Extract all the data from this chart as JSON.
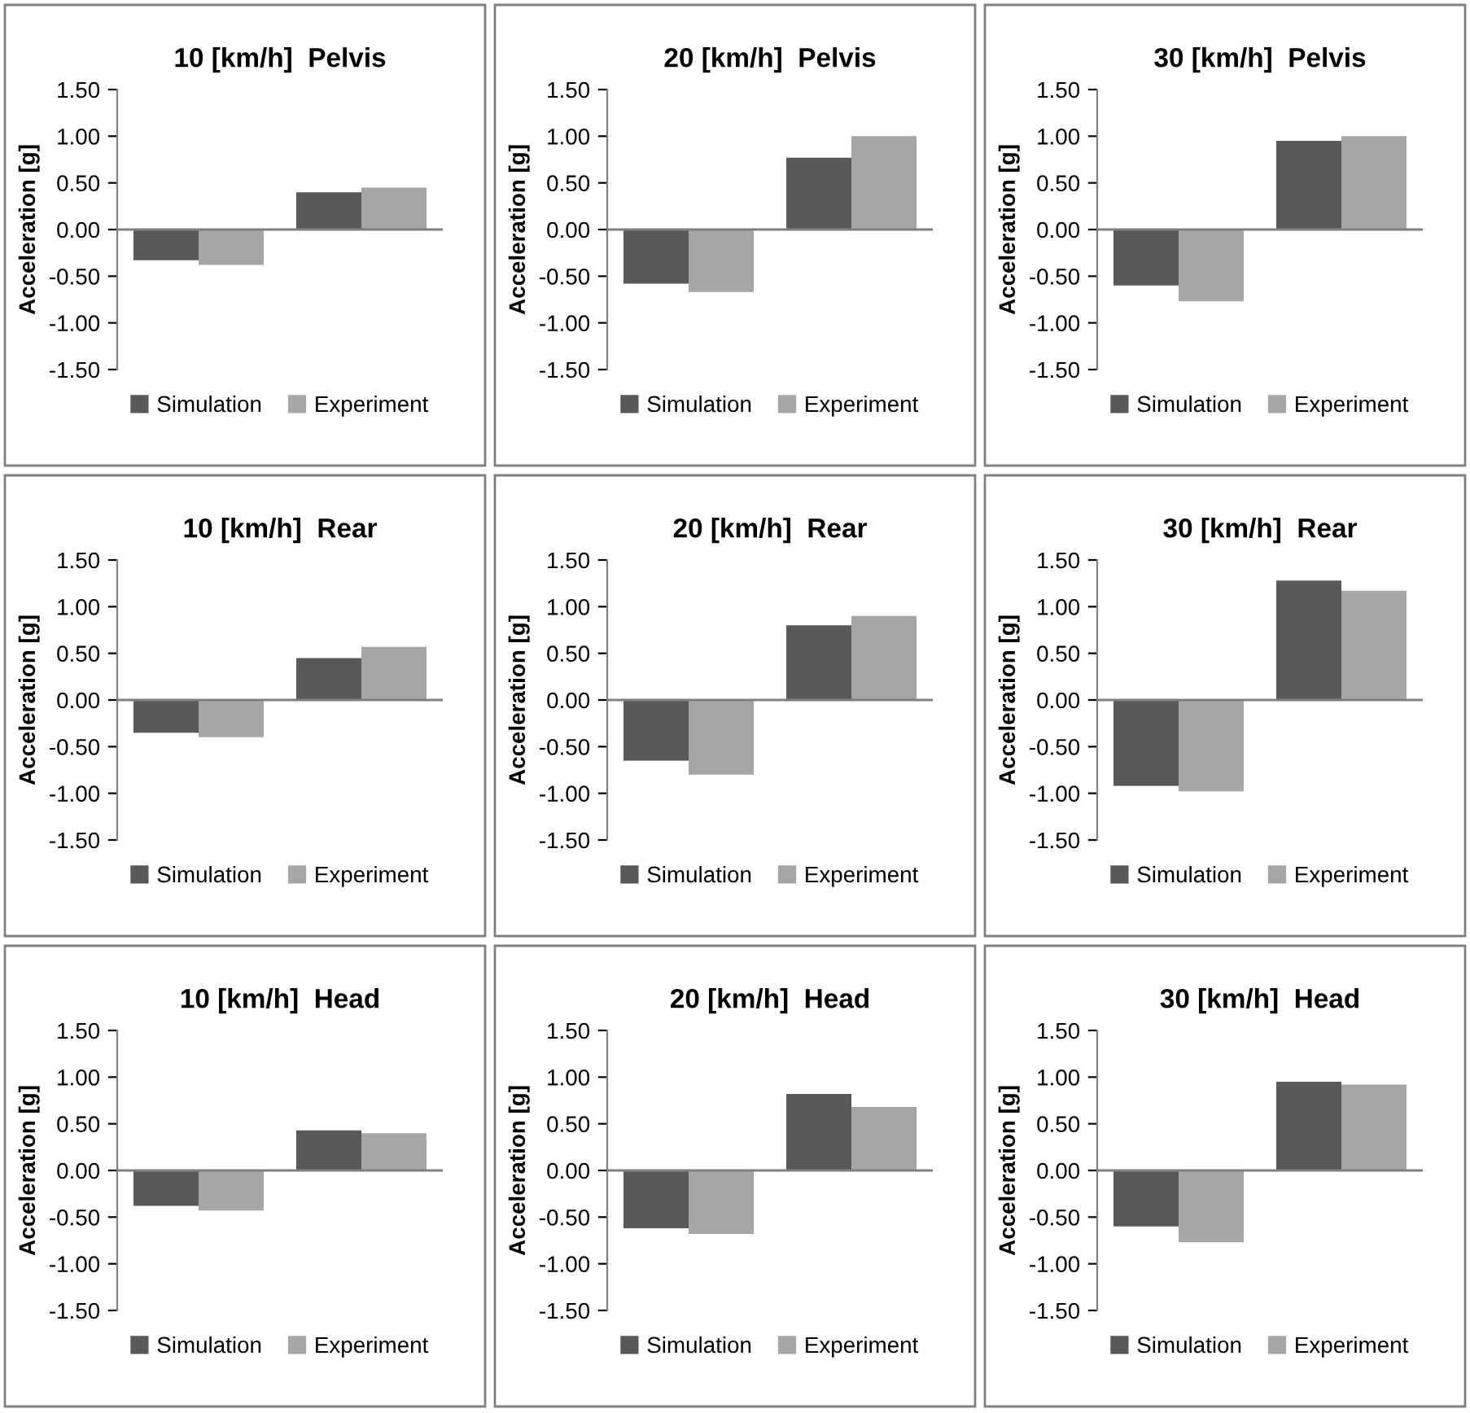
{
  "chart_data": [
    {
      "type": "bar",
      "title": "10 [km/h]  Pelvis",
      "ylabel": "Acceleration [g]",
      "categories": [
        null,
        null
      ],
      "series": [
        {
          "name": "Simulation",
          "color": "#595959",
          "values": [
            -0.33,
            0.4
          ]
        },
        {
          "name": "Experiment",
          "color": "#a6a6a6",
          "values": [
            -0.38,
            0.45
          ]
        }
      ],
      "ylim": [
        -1.5,
        1.5
      ],
      "yticks": [
        {
          "value": -1.5,
          "label": "-1.50"
        },
        {
          "value": -1.0,
          "label": "-1.00"
        },
        {
          "value": -0.5,
          "label": "-0.50"
        },
        {
          "value": 0,
          "label": "0.00"
        },
        {
          "value": 0.5,
          "label": "0.50"
        },
        {
          "value": 1.0,
          "label": "1.00"
        },
        {
          "value": 1.5,
          "label": "1.50"
        }
      ],
      "legend": "bottom",
      "tick_labels": "y"
    },
    {
      "type": "bar",
      "title": "20 [km/h]  Pelvis",
      "ylabel": "Acceleration [g]",
      "categories": [
        null,
        null
      ],
      "series": [
        {
          "name": "Simulation",
          "color": "#595959",
          "values": [
            -0.58,
            0.77
          ]
        },
        {
          "name": "Experiment",
          "color": "#a6a6a6",
          "values": [
            -0.67,
            1.0
          ]
        }
      ],
      "ylim": [
        -1.5,
        1.5
      ],
      "yticks": [
        {
          "value": -1.5,
          "label": "-1.50"
        },
        {
          "value": -1.0,
          "label": "-1.00"
        },
        {
          "value": -0.5,
          "label": "-0.50"
        },
        {
          "value": 0,
          "label": "0.00"
        },
        {
          "value": 0.5,
          "label": "0.50"
        },
        {
          "value": 1.0,
          "label": "1.00"
        },
        {
          "value": 1.5,
          "label": "1.50"
        }
      ],
      "legend": "bottom",
      "tick_labels": "y"
    },
    {
      "type": "bar",
      "title": "30 [km/h]  Pelvis",
      "ylabel": "Acceleration [g]",
      "categories": [
        null,
        null
      ],
      "series": [
        {
          "name": "Simulation",
          "color": "#595959",
          "values": [
            -0.6,
            0.95
          ]
        },
        {
          "name": "Experiment",
          "color": "#a6a6a6",
          "values": [
            -0.77,
            1.0
          ]
        }
      ],
      "ylim": [
        -1.5,
        1.5
      ],
      "yticks": [
        {
          "value": -1.5,
          "label": "-1.50"
        },
        {
          "value": -1.0,
          "label": "-1.00"
        },
        {
          "value": -0.5,
          "label": "-0.50"
        },
        {
          "value": 0,
          "label": "0.00"
        },
        {
          "value": 0.5,
          "label": "0.50"
        },
        {
          "value": 1.0,
          "label": "1.00"
        },
        {
          "value": 1.5,
          "label": "1.50"
        }
      ],
      "legend": "bottom",
      "tick_labels": "y"
    },
    {
      "type": "bar",
      "title": "10 [km/h]  Rear",
      "ylabel": "Acceleration [g]",
      "categories": [
        null,
        null
      ],
      "series": [
        {
          "name": "Simulation",
          "color": "#595959",
          "values": [
            -0.35,
            0.45
          ]
        },
        {
          "name": "Experiment",
          "color": "#a6a6a6",
          "values": [
            -0.4,
            0.57
          ]
        }
      ],
      "ylim": [
        -1.5,
        1.5
      ],
      "yticks": [
        {
          "value": -1.5,
          "label": "-1.50"
        },
        {
          "value": -1.0,
          "label": "-1.00"
        },
        {
          "value": -0.5,
          "label": "-0.50"
        },
        {
          "value": 0,
          "label": "0.00"
        },
        {
          "value": 0.5,
          "label": "0.50"
        },
        {
          "value": 1.0,
          "label": "1.00"
        },
        {
          "value": 1.5,
          "label": "1.50"
        }
      ],
      "legend": "bottom",
      "tick_labels": "y"
    },
    {
      "type": "bar",
      "title": "20 [km/h]  Rear",
      "ylabel": "Acceleration [g]",
      "categories": [
        null,
        null
      ],
      "series": [
        {
          "name": "Simulation",
          "color": "#595959",
          "values": [
            -0.65,
            0.8
          ]
        },
        {
          "name": "Experiment",
          "color": "#a6a6a6",
          "values": [
            -0.8,
            0.9
          ]
        }
      ],
      "ylim": [
        -1.5,
        1.5
      ],
      "yticks": [
        {
          "value": -1.5,
          "label": "-1.50"
        },
        {
          "value": -1.0,
          "label": "-1.00"
        },
        {
          "value": -0.5,
          "label": "-0.50"
        },
        {
          "value": 0,
          "label": "0.00"
        },
        {
          "value": 0.5,
          "label": "0.50"
        },
        {
          "value": 1.0,
          "label": "1.00"
        },
        {
          "value": 1.5,
          "label": "1.50"
        }
      ],
      "legend": "bottom",
      "tick_labels": "y"
    },
    {
      "type": "bar",
      "title": "30 [km/h]  Rear",
      "ylabel": "Acceleration [g]",
      "categories": [
        null,
        null
      ],
      "series": [
        {
          "name": "Simulation",
          "color": "#595959",
          "values": [
            -0.92,
            1.28
          ]
        },
        {
          "name": "Experiment",
          "color": "#a6a6a6",
          "values": [
            -0.98,
            1.17
          ]
        }
      ],
      "ylim": [
        -1.5,
        1.5
      ],
      "yticks": [
        {
          "value": -1.5,
          "label": "-1.50"
        },
        {
          "value": -1.0,
          "label": "-1.00"
        },
        {
          "value": -0.5,
          "label": "-0.50"
        },
        {
          "value": 0,
          "label": "0.00"
        },
        {
          "value": 0.5,
          "label": "0.50"
        },
        {
          "value": 1.0,
          "label": "1.00"
        },
        {
          "value": 1.5,
          "label": "1.50"
        }
      ],
      "legend": "bottom",
      "tick_labels": "y"
    },
    {
      "type": "bar",
      "title": "10 [km/h]  Head",
      "ylabel": "Acceleration [g]",
      "categories": [
        null,
        null
      ],
      "series": [
        {
          "name": "Simulation",
          "color": "#595959",
          "values": [
            -0.38,
            0.43
          ]
        },
        {
          "name": "Experiment",
          "color": "#a6a6a6",
          "values": [
            -0.43,
            0.4
          ]
        }
      ],
      "ylim": [
        -1.5,
        1.5
      ],
      "yticks": [
        {
          "value": -1.5,
          "label": "-1.50"
        },
        {
          "value": -1.0,
          "label": "-1.00"
        },
        {
          "value": -0.5,
          "label": "-0.50"
        },
        {
          "value": 0,
          "label": "0.00"
        },
        {
          "value": 0.5,
          "label": "0.50"
        },
        {
          "value": 1.0,
          "label": "1.00"
        },
        {
          "value": 1.5,
          "label": "1.50"
        }
      ],
      "legend": "bottom",
      "tick_labels": "y"
    },
    {
      "type": "bar",
      "title": "20 [km/h]  Head",
      "ylabel": "Acceleration [g]",
      "categories": [
        null,
        null
      ],
      "series": [
        {
          "name": "Simulation",
          "color": "#595959",
          "values": [
            -0.62,
            0.82
          ]
        },
        {
          "name": "Experiment",
          "color": "#a6a6a6",
          "values": [
            -0.68,
            0.68
          ]
        }
      ],
      "ylim": [
        -1.5,
        1.5
      ],
      "yticks": [
        {
          "value": -1.5,
          "label": "-1.50"
        },
        {
          "value": -1.0,
          "label": "-1.00"
        },
        {
          "value": -0.5,
          "label": "-0.50"
        },
        {
          "value": 0,
          "label": "0.00"
        },
        {
          "value": 0.5,
          "label": "0.50"
        },
        {
          "value": 1.0,
          "label": "1.00"
        },
        {
          "value": 1.5,
          "label": "1.50"
        }
      ],
      "legend": "bottom",
      "tick_labels": "y"
    },
    {
      "type": "bar",
      "title": "30 [km/h]  Head",
      "ylabel": "Acceleration [g]",
      "categories": [
        null,
        null
      ],
      "series": [
        {
          "name": "Simulation",
          "color": "#595959",
          "values": [
            -0.6,
            0.95
          ]
        },
        {
          "name": "Experiment",
          "color": "#a6a6a6",
          "values": [
            -0.77,
            0.92
          ]
        }
      ],
      "ylim": [
        -1.5,
        1.5
      ],
      "yticks": [
        {
          "value": -1.5,
          "label": "-1.50"
        },
        {
          "value": -1.0,
          "label": "-1.00"
        },
        {
          "value": -0.5,
          "label": "-0.50"
        },
        {
          "value": 0,
          "label": "0.00"
        },
        {
          "value": 0.5,
          "label": "0.50"
        },
        {
          "value": 1.0,
          "label": "1.00"
        },
        {
          "value": 1.5,
          "label": "1.50"
        }
      ],
      "legend": "bottom",
      "tick_labels": "y"
    }
  ]
}
